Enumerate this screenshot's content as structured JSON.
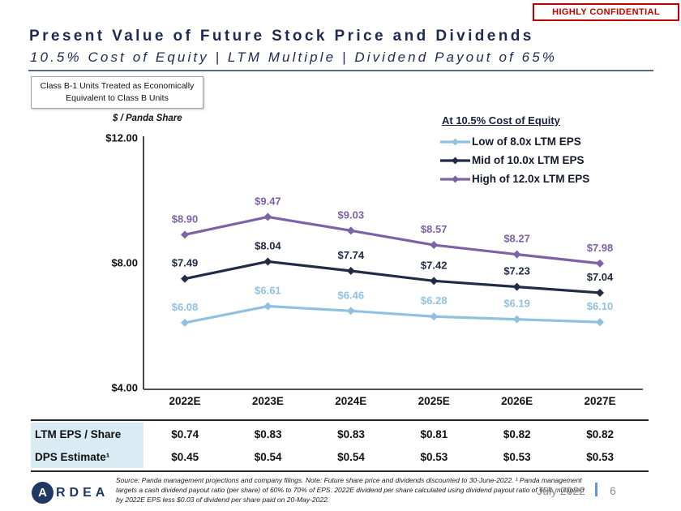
{
  "badge": {
    "label": "HIGHLY CONFIDENTIAL",
    "color": "#C00000"
  },
  "header": {
    "title": "Present Value of Future Stock Price and Dividends",
    "subtitle": "10.5% Cost of Equity | LTM Multiple | Dividend Payout of 65%"
  },
  "note_box": {
    "text": "Class B-1 Units Treated as Economically Equivalent to Class B Units"
  },
  "chart_data": {
    "type": "line",
    "axis_title": "$ / Panda Share",
    "legend_title": "At 10.5% Cost of Equity",
    "legend_position": "top-right",
    "grid": false,
    "categories": [
      "2022E",
      "2023E",
      "2024E",
      "2025E",
      "2026E",
      "2027E"
    ],
    "series": [
      {
        "name": "Low of 8.0x LTM EPS",
        "color": "#90C1E1",
        "values": [
          6.08,
          6.61,
          6.46,
          6.28,
          6.19,
          6.1
        ],
        "labels": [
          "$6.08",
          "$6.61",
          "$6.46",
          "$6.28",
          "$6.19",
          "$6.10"
        ]
      },
      {
        "name": "Mid of 10.0x LTM EPS",
        "color": "#212B46",
        "values": [
          7.49,
          8.04,
          7.74,
          7.42,
          7.23,
          7.04
        ],
        "labels": [
          "$7.49",
          "$8.04",
          "$7.74",
          "$7.42",
          "$7.23",
          "$7.04"
        ]
      },
      {
        "name": "High of 12.0x LTM EPS",
        "color": "#7D62A6",
        "values": [
          8.9,
          9.47,
          9.03,
          8.57,
          8.27,
          7.98
        ],
        "labels": [
          "$8.90",
          "$9.47",
          "$9.03",
          "$8.57",
          "$8.27",
          "$7.98"
        ]
      }
    ],
    "ylim": [
      4,
      12
    ],
    "y_ticks": [
      {
        "label": "$12.00",
        "value": 12
      },
      {
        "label": "$8.00",
        "value": 8
      },
      {
        "label": "$4.00",
        "value": 4
      }
    ]
  },
  "table": {
    "rows": [
      {
        "label": "LTM EPS / Share",
        "values": [
          "$0.74",
          "$0.83",
          "$0.83",
          "$0.81",
          "$0.82",
          "$0.82"
        ]
      },
      {
        "label": "DPS Estimate¹",
        "values": [
          "$0.45",
          "$0.54",
          "$0.54",
          "$0.53",
          "$0.53",
          "$0.53"
        ]
      }
    ],
    "label_bg": "#D9EBF3"
  },
  "footer": {
    "logo_initial": "A",
    "logo_text": "RDEA",
    "source": "Source: Panda management projections and company filings. Note: Future share price and dividends discounted to 30-June-2022. ¹ Panda management targets a cash dividend payout ratio (per share) of 60% to 70% of EPS. 2022E dividend per share calculated using dividend payout ratio of 65% multiplied by 2022E EPS less $0.03 of dividend per share paid on 20-May-2022.",
    "date": "July 2022",
    "page": "6"
  }
}
